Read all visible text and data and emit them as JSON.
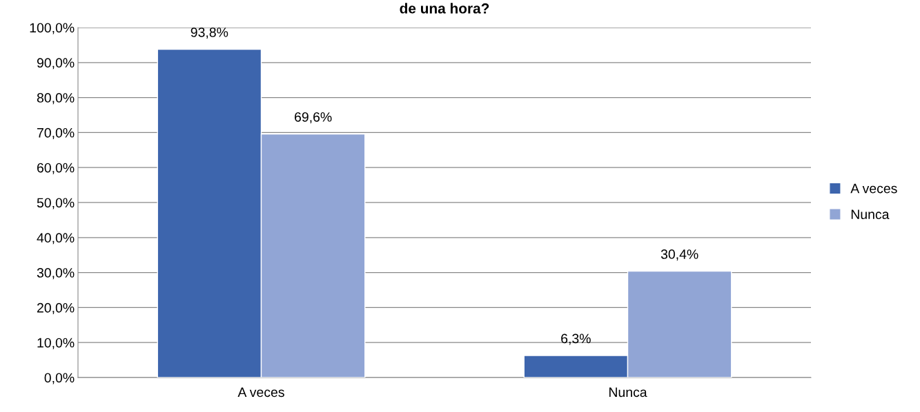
{
  "chart_data": {
    "type": "bar",
    "title": "de una hora?",
    "categories": [
      "A veces",
      "Nunca"
    ],
    "series": [
      {
        "name": "A veces",
        "color": "#3d65ad",
        "values": [
          93.8,
          6.3
        ],
        "value_labels": [
          "93,8%",
          "6,3%"
        ]
      },
      {
        "name": "Nunca",
        "color": "#91a5d5",
        "values": [
          69.6,
          30.4
        ],
        "value_labels": [
          "69,6%",
          "30,4%"
        ]
      }
    ],
    "ylim": [
      0,
      100
    ],
    "yticks": [
      {
        "value": 0,
        "label": "0,0%"
      },
      {
        "value": 10,
        "label": "10,0%"
      },
      {
        "value": 20,
        "label": "20,0%"
      },
      {
        "value": 30,
        "label": "30,0%"
      },
      {
        "value": 40,
        "label": "40,0%"
      },
      {
        "value": 50,
        "label": "50,0%"
      },
      {
        "value": 60,
        "label": "60,0%"
      },
      {
        "value": 70,
        "label": "70,0%"
      },
      {
        "value": 80,
        "label": "80,0%"
      },
      {
        "value": 90,
        "label": "90,0%"
      },
      {
        "value": 100,
        "label": "100,0%"
      }
    ],
    "grid": "y",
    "legend": "right"
  }
}
